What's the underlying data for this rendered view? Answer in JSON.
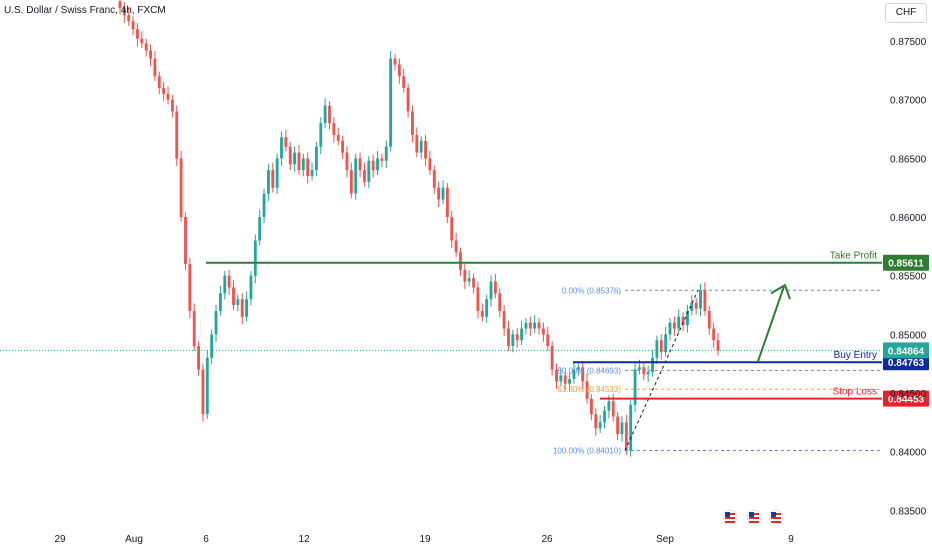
{
  "header": {
    "title": "U.S. Dollar / Swiss Franc, 4h, FXCM",
    "currency": "CHF"
  },
  "colors": {
    "up": "#26a69a",
    "down": "#ef5350",
    "take_profit": "#2e7d32",
    "buy_entry": "#0d2b9e",
    "stop_loss": "#e8222b",
    "current_price": "#26a69a",
    "fib_line": "#5b8fd6",
    "fib_mid": "#f09a4a",
    "arrow": "#2e7d32"
  },
  "chart_data": {
    "type": "candlestick",
    "ylim": [
      0.8335,
      0.8785
    ],
    "y_ticks": [
      "0.87500",
      "0.87000",
      "0.86500",
      "0.86000",
      "0.85500",
      "0.85000",
      "0.84500",
      "0.84000",
      "0.83500"
    ],
    "x_ticks": [
      "29",
      "Aug",
      "6",
      "12",
      "19",
      "26",
      "Sep",
      "9"
    ],
    "closes": [
      0.8778,
      0.8772,
      0.8767,
      0.876,
      0.8752,
      0.8748,
      0.8742,
      0.8735,
      0.872,
      0.871,
      0.8705,
      0.87,
      0.869,
      0.865,
      0.86,
      0.856,
      0.852,
      0.849,
      0.847,
      0.8432,
      0.848,
      0.85,
      0.852,
      0.8535,
      0.855,
      0.854,
      0.8525,
      0.853,
      0.8515,
      0.853,
      0.855,
      0.858,
      0.86,
      0.862,
      0.864,
      0.8625,
      0.865,
      0.8668,
      0.866,
      0.8645,
      0.8655,
      0.864,
      0.865,
      0.8635,
      0.864,
      0.866,
      0.868,
      0.8695,
      0.868,
      0.867,
      0.8665,
      0.8655,
      0.864,
      0.862,
      0.865,
      0.864,
      0.863,
      0.8648,
      0.864,
      0.865,
      0.8648,
      0.866,
      0.8735,
      0.873,
      0.872,
      0.871,
      0.869,
      0.867,
      0.8655,
      0.8665,
      0.865,
      0.864,
      0.8625,
      0.8615,
      0.8625,
      0.86,
      0.858,
      0.857,
      0.8555,
      0.8545,
      0.8548,
      0.854,
      0.852,
      0.8515,
      0.853,
      0.8545,
      0.8535,
      0.852,
      0.8505,
      0.849,
      0.85,
      0.8495,
      0.8505,
      0.851,
      0.8505,
      0.851,
      0.8505,
      0.85,
      0.849,
      0.847,
      0.846,
      0.8465,
      0.8458,
      0.8462,
      0.847,
      0.8472,
      0.846,
      0.8445,
      0.8432,
      0.842,
      0.8425,
      0.8435,
      0.8443,
      0.843,
      0.8415,
      0.8425,
      0.8401,
      0.844,
      0.847,
      0.8472,
      0.8466,
      0.8468,
      0.848,
      0.8495,
      0.8485,
      0.85,
      0.851,
      0.8505,
      0.8515,
      0.8508,
      0.852,
      0.8527,
      0.8522,
      0.8538,
      0.852,
      0.8505,
      0.8495,
      0.8486
    ]
  },
  "levels": {
    "take_profit": {
      "label": "Take Profit",
      "value": "0.85611"
    },
    "buy_entry": {
      "label": "Buy Entry",
      "value": "0.84763"
    },
    "current": {
      "value": "0.84864"
    },
    "stop_loss": {
      "label": "Stop Loss",
      "value": "0.84453"
    }
  },
  "fib": [
    {
      "label": "0.00% (0.85376)",
      "price": 0.85376
    },
    {
      "label": "50.00% (0.84693)",
      "price": 0.84693
    },
    {
      "label": "61.80% (0.84533)",
      "price": 0.84533
    },
    {
      "label": "100.00% (0.84010)",
      "price": 0.8401
    }
  ]
}
